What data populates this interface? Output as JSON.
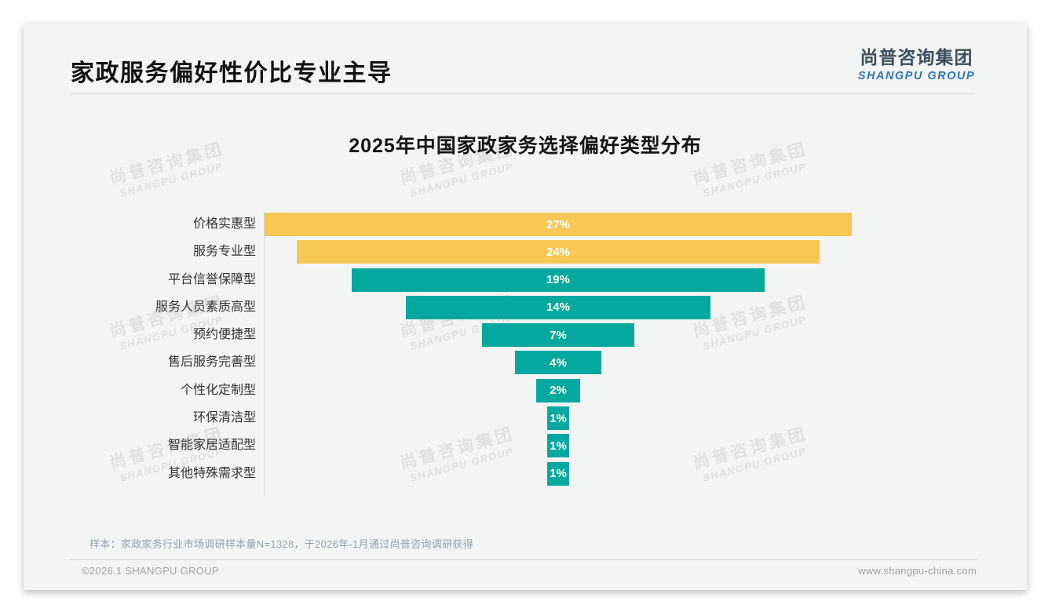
{
  "page": {
    "title": "家政服务偏好性价比专业主导",
    "logo": {
      "cn": "尚普咨询集团",
      "en": "SHANGPU GROUP"
    },
    "watermark": {
      "cn": "尚普咨询集团",
      "en": "SHANGPU GROUP"
    },
    "footnote": "样本：家政家务行业市场调研样本量N=1328，于2026年-1月通过尚普咨询调研获得",
    "footer": {
      "left": "©2026.1 SHANGPU GROUP",
      "right": "www.shangpu-china.com"
    }
  },
  "chart_data": {
    "type": "bar",
    "title": "2025年中国家政家务选择偏好类型分布",
    "orientation": "horizontal-centered-funnel",
    "categories": [
      "价格实惠型",
      "服务专业型",
      "平台信誉保障型",
      "服务人员素质高型",
      "预约便捷型",
      "售后服务完善型",
      "个性化定制型",
      "环保清洁型",
      "智能家居适配型",
      "其他特殊需求型"
    ],
    "values": [
      27,
      24,
      19,
      14,
      7,
      4,
      2,
      1,
      1,
      1
    ],
    "unit": "%",
    "data_labels": [
      "27%",
      "24%",
      "19%",
      "14%",
      "7%",
      "4%",
      "2%",
      "1%",
      "1%",
      "1%"
    ],
    "colors": [
      "#F8C855",
      "#F8C855",
      "#05A89E",
      "#05A89E",
      "#05A89E",
      "#05A89E",
      "#05A89E",
      "#05A89E",
      "#05A89E",
      "#05A89E"
    ],
    "highlight_color": "#F8C855",
    "default_color": "#05A89E",
    "label_color": "#FFFFFF",
    "xlim": [
      0,
      27
    ],
    "grid": false,
    "legend": false
  }
}
